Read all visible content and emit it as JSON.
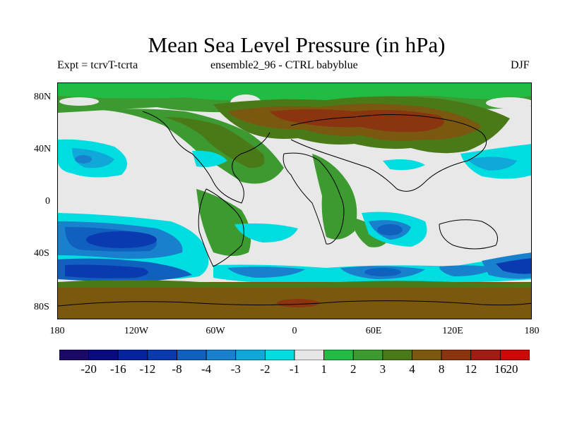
{
  "title": "Mean Sea Level Pressure (in hPa)",
  "subtitle_left": "Expt = tcrvT-tcrta",
  "subtitle_center": "ensemble2_96 - CTRL babyblue",
  "subtitle_right": "DJF",
  "lat_labels": [
    "80N",
    "40N",
    "0",
    "40S",
    "80S"
  ],
  "lon_labels": [
    "180",
    "120W",
    "60W",
    "0",
    "60E",
    "120E",
    "180"
  ],
  "colorbar": {
    "labels": [
      "-20",
      "-16",
      "-12",
      "-8",
      "-4",
      "-3",
      "-2",
      "-1",
      "1",
      "2",
      "3",
      "4",
      "8",
      "12",
      "16",
      "20"
    ],
    "colors": [
      "#1a0a66",
      "#0a0a80",
      "#06239e",
      "#0a3ab0",
      "#1060c0",
      "#1880cc",
      "#10a8d8",
      "#00dde0",
      "#e6e6e6",
      "#22bb44",
      "#3c9a30",
      "#4a7a18",
      "#7a5810",
      "#8a3410",
      "#a01c14",
      "#cc0808"
    ]
  },
  "chart_data": {
    "type": "heatmap",
    "title": "Mean Sea Level Pressure (in hPa)",
    "projection": "cylindrical equidistant",
    "lon_range": [
      -180,
      180
    ],
    "lat_range": [
      -90,
      90
    ],
    "contour_levels": [
      -20,
      -16,
      -12,
      -8,
      -4,
      -3,
      -2,
      -1,
      1,
      2,
      3,
      4,
      8,
      12,
      16,
      20
    ],
    "regions": [
      {
        "desc": "South Pacific low centre",
        "lon": -115,
        "lat": -35,
        "approx_value": -8
      },
      {
        "desc": "South Pacific southern low",
        "lon": -120,
        "lat": -50,
        "approx_value": -8
      },
      {
        "desc": "South Indian Ocean low",
        "lon": 70,
        "lat": -48,
        "approx_value": -4
      },
      {
        "desc": "Southern Ocean near NZ",
        "lon": 165,
        "lat": -48,
        "approx_value": -8
      },
      {
        "desc": "Antarctic ring",
        "lon": 0,
        "lat": -70,
        "approx_value": 4
      },
      {
        "desc": "Siberia / Central Asia",
        "lon": 60,
        "lat": 65,
        "approx_value": 8
      },
      {
        "desc": "North Pacific low",
        "lon": -160,
        "lat": 33,
        "approx_value": -3
      },
      {
        "desc": "Tropics",
        "lon": 0,
        "lat": 0,
        "approx_value": 0
      }
    ]
  }
}
